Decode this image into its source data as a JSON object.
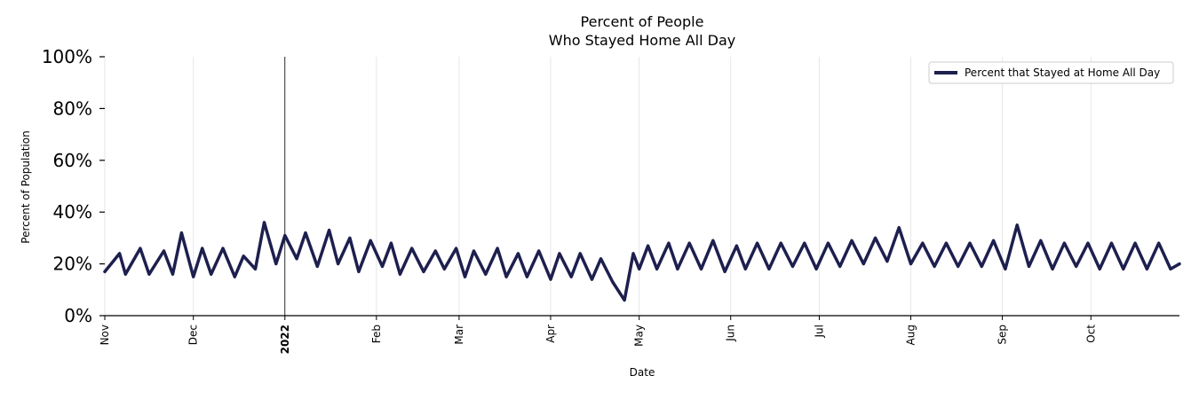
{
  "chart_data": {
    "type": "line",
    "title_line1": "Percent of People",
    "title_line2": "Who Stayed Home All Day",
    "xlabel": "Date",
    "ylabel": "Percent of Population",
    "ylim": [
      0,
      100
    ],
    "yticks": [
      {
        "value": 0,
        "label": "0%"
      },
      {
        "value": 20,
        "label": "20%"
      },
      {
        "value": 40,
        "label": "40%"
      },
      {
        "value": 60,
        "label": "60%"
      },
      {
        "value": 80,
        "label": "80%"
      },
      {
        "value": 100,
        "label": "100%"
      }
    ],
    "x_start": "2021-11-01",
    "x_end": "2022-10-31",
    "xticks": [
      {
        "date": "2021-11-01",
        "label": "Nov",
        "bold": false
      },
      {
        "date": "2021-12-01",
        "label": "Dec",
        "bold": false
      },
      {
        "date": "2022-01-01",
        "label": "2022",
        "bold": true
      },
      {
        "date": "2022-02-01",
        "label": "Feb",
        "bold": false
      },
      {
        "date": "2022-03-01",
        "label": "Mar",
        "bold": false
      },
      {
        "date": "2022-04-01",
        "label": "Apr",
        "bold": false
      },
      {
        "date": "2022-05-01",
        "label": "May",
        "bold": false
      },
      {
        "date": "2022-06-01",
        "label": "Jun",
        "bold": false
      },
      {
        "date": "2022-07-01",
        "label": "Jul",
        "bold": false
      },
      {
        "date": "2022-08-01",
        "label": "Aug",
        "bold": false
      },
      {
        "date": "2022-09-01",
        "label": "Sep",
        "bold": false
      },
      {
        "date": "2022-10-01",
        "label": "Oct",
        "bold": false
      }
    ],
    "vline_date": "2022-01-01",
    "grid": "vertical",
    "legend_position": "top-right",
    "colors": {
      "line": "#1d1f4e",
      "grid": "#e6e6e6",
      "axis": "#000000"
    },
    "series": [
      {
        "name": "Percent that Stayed at Home All Day",
        "x": [
          "2021-11-01",
          "2021-11-06",
          "2021-11-08",
          "2021-11-13",
          "2021-11-16",
          "2021-11-21",
          "2021-11-24",
          "2021-11-27",
          "2021-12-01",
          "2021-12-04",
          "2021-12-07",
          "2021-12-11",
          "2021-12-15",
          "2021-12-18",
          "2021-12-22",
          "2021-12-25",
          "2021-12-29",
          "2022-01-01",
          "2022-01-05",
          "2022-01-08",
          "2022-01-12",
          "2022-01-16",
          "2022-01-19",
          "2022-01-23",
          "2022-01-26",
          "2022-01-30",
          "2022-02-03",
          "2022-02-06",
          "2022-02-09",
          "2022-02-13",
          "2022-02-17",
          "2022-02-21",
          "2022-02-24",
          "2022-02-28",
          "2022-03-03",
          "2022-03-06",
          "2022-03-10",
          "2022-03-14",
          "2022-03-17",
          "2022-03-21",
          "2022-03-24",
          "2022-03-28",
          "2022-04-01",
          "2022-04-04",
          "2022-04-08",
          "2022-04-11",
          "2022-04-15",
          "2022-04-18",
          "2022-04-22",
          "2022-04-26",
          "2022-04-29",
          "2022-05-01",
          "2022-05-04",
          "2022-05-07",
          "2022-05-11",
          "2022-05-14",
          "2022-05-18",
          "2022-05-22",
          "2022-05-26",
          "2022-05-30",
          "2022-06-03",
          "2022-06-06",
          "2022-06-10",
          "2022-06-14",
          "2022-06-18",
          "2022-06-22",
          "2022-06-26",
          "2022-06-30",
          "2022-07-04",
          "2022-07-08",
          "2022-07-12",
          "2022-07-16",
          "2022-07-20",
          "2022-07-24",
          "2022-07-28",
          "2022-08-01",
          "2022-08-05",
          "2022-08-09",
          "2022-08-13",
          "2022-08-17",
          "2022-08-21",
          "2022-08-25",
          "2022-08-29",
          "2022-09-02",
          "2022-09-06",
          "2022-09-10",
          "2022-09-14",
          "2022-09-18",
          "2022-09-22",
          "2022-09-26",
          "2022-09-30",
          "2022-10-04",
          "2022-10-08",
          "2022-10-12",
          "2022-10-16",
          "2022-10-20",
          "2022-10-24",
          "2022-10-28",
          "2022-10-31"
        ],
        "values": [
          17,
          24,
          16,
          26,
          16,
          25,
          16,
          32,
          15,
          26,
          16,
          26,
          15,
          23,
          18,
          36,
          20,
          31,
          22,
          32,
          19,
          33,
          20,
          30,
          17,
          29,
          19,
          28,
          16,
          26,
          17,
          25,
          18,
          26,
          15,
          25,
          16,
          26,
          15,
          24,
          15,
          25,
          14,
          24,
          15,
          24,
          14,
          22,
          13,
          6,
          24,
          18,
          27,
          18,
          28,
          18,
          28,
          18,
          29,
          17,
          27,
          18,
          28,
          18,
          28,
          19,
          28,
          18,
          28,
          19,
          29,
          20,
          30,
          21,
          34,
          20,
          28,
          19,
          28,
          19,
          28,
          19,
          29,
          18,
          35,
          19,
          29,
          18,
          28,
          19,
          28,
          18,
          28,
          18,
          28,
          18,
          28,
          18,
          20
        ]
      }
    ]
  }
}
